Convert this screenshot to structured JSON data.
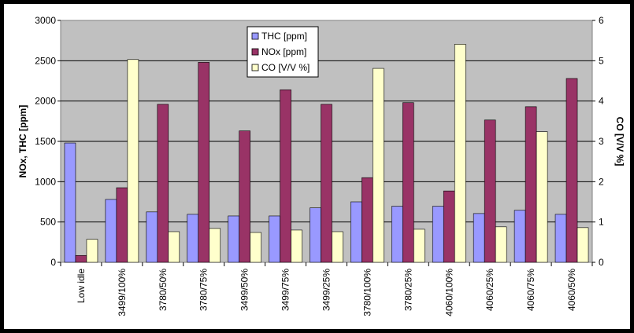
{
  "chart_data": {
    "type": "bar",
    "categories": [
      "Low idle",
      "3499/100%",
      "3780/50%",
      "3780/75%",
      "3499/50%",
      "3499/75%",
      "3499/25%",
      "3780/100%",
      "3780/25%",
      "4060/100%",
      "4060/25%",
      "4060/75%",
      "4060/50%"
    ],
    "series": [
      {
        "name": "THC [ppm]",
        "axis": "left",
        "color": "#9999ff",
        "values": [
          1480,
          780,
          625,
          595,
          575,
          575,
          675,
          750,
          695,
          695,
          605,
          645,
          595
        ]
      },
      {
        "name": "NOx [ppm]",
        "axis": "left",
        "color": "#993366",
        "values": [
          85,
          925,
          1960,
          2480,
          1630,
          2140,
          1960,
          1050,
          1980,
          885,
          1765,
          1930,
          2280
        ]
      },
      {
        "name": "CO [V/V %]",
        "axis": "right",
        "color": "#ffffcc",
        "values": [
          0.57,
          5.03,
          0.76,
          0.84,
          0.74,
          0.8,
          0.76,
          4.81,
          0.82,
          5.41,
          0.88,
          3.24,
          0.86
        ]
      }
    ],
    "ylabel": "NOx, THC [ppm]",
    "y2label": "CO [V/V %]",
    "ylim": [
      0,
      3000
    ],
    "y2lim": [
      0,
      6
    ],
    "yticks": [
      "0",
      "500",
      "1000",
      "1500",
      "2000",
      "2500",
      "3000"
    ],
    "y2ticks": [
      "0",
      "1",
      "2",
      "3",
      "4",
      "5",
      "6"
    ],
    "grid": true,
    "legend_position": "top-center",
    "plot_background": "#c0c0c0",
    "chart_background": "#ffffff"
  }
}
